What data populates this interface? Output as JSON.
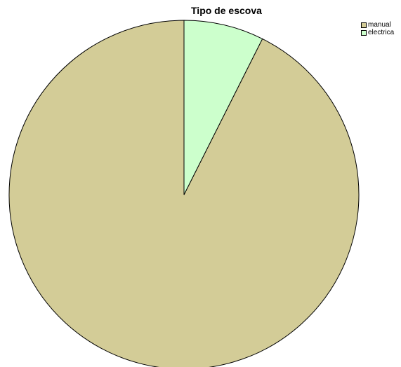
{
  "chart_data": {
    "type": "pie",
    "title": "Tipo de escova",
    "categories": [
      "manual",
      "electrica"
    ],
    "values": [
      92.6,
      7.4
    ],
    "colors": [
      "#d3cc97",
      "#ccffcc"
    ],
    "start_angle_deg": 0,
    "direction": "counterclockwise",
    "legend": "top-right",
    "legend_entries": [
      "manual",
      "electrica"
    ]
  }
}
